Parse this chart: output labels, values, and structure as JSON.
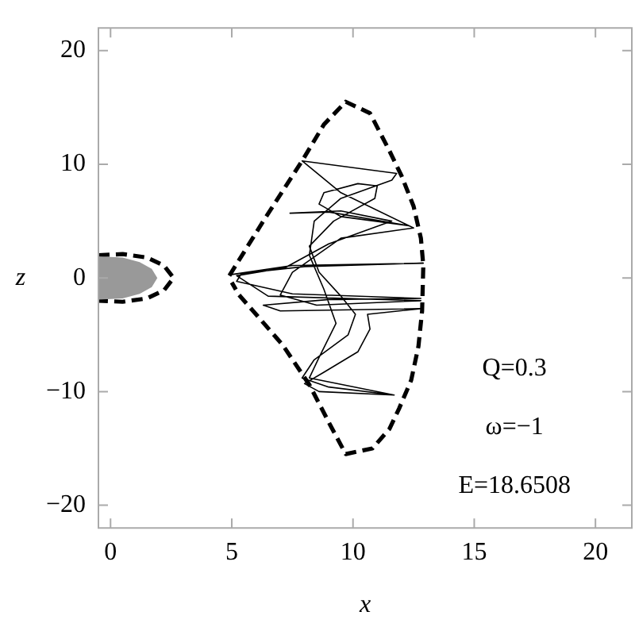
{
  "chart_data": {
    "type": "line",
    "xlabel": "x",
    "ylabel": "z",
    "xlim": [
      -0.5,
      21.5
    ],
    "ylim": [
      -22,
      22
    ],
    "xticks": [
      0,
      5,
      10,
      15,
      20
    ],
    "yticks": [
      {
        "value": -20,
        "label": "−20"
      },
      {
        "value": -10,
        "label": "−10"
      },
      0,
      10,
      20
    ],
    "grid": false,
    "legend": false,
    "annotations": [
      "Q=0.3",
      "ω=−1",
      "E=18.6508"
    ],
    "series": [
      {
        "type": "area",
        "color": "#999999",
        "x": [
          -0.5,
          0.5,
          1.2,
          1.7,
          1.93,
          1.7,
          1.2,
          0.5,
          -0.5
        ],
        "values": [
          1.9,
          1.8,
          1.4,
          0.8,
          0,
          -0.8,
          -1.4,
          -1.8,
          -1.9
        ]
      },
      {
        "type": "line",
        "line_style": "dashed",
        "color": "#000000",
        "x": [
          -0.5,
          0.5,
          1.5,
          2.2,
          2.6,
          2.2,
          1.5,
          0.5,
          -0.5
        ],
        "values": [
          2.0,
          2.1,
          1.8,
          1.1,
          0,
          -1.1,
          -1.8,
          -2.1,
          -2.0
        ]
      },
      {
        "type": "line",
        "line_style": "dashed",
        "color": "#000000",
        "x": [
          4.9,
          6.3,
          7.9,
          8.8,
          9.7,
          10.7,
          11.5,
          12.0,
          12.5,
          12.8,
          12.9,
          12.85,
          12.7,
          12.4,
          11.9,
          11.5,
          10.8,
          9.7,
          9.05,
          8.2,
          7.1,
          6.0,
          5.3,
          5.0
        ],
        "values": [
          0.2,
          5.0,
          10.3,
          13.5,
          15.5,
          14.5,
          11.2,
          9.0,
          6.3,
          3.5,
          1.1,
          -2.9,
          -6.0,
          -9.0,
          -11.5,
          -13.3,
          -15.0,
          -15.5,
          -12.9,
          -9.4,
          -5.9,
          -3.2,
          -1.5,
          -0.4
        ]
      },
      {
        "type": "line",
        "line_style": "solid",
        "color": "#000000",
        "x": [
          5.0,
          7.5,
          12.9,
          8.0,
          5.4,
          5.2,
          7.5,
          12.8,
          9.0,
          6.3,
          7.0,
          12.8,
          10.6,
          10.7,
          10.2,
          8.8,
          8.0,
          8.6,
          11.7,
          9.0,
          7.9,
          8.4,
          9.8,
          10.1,
          9.5,
          8.6,
          8.2,
          9.2,
          10.9,
          11.0,
          10.2,
          8.8,
          8.6,
          9.5,
          12.3,
          9.0,
          7.4,
          9.5,
          11.6,
          9.0,
          7.2,
          5.2,
          6.5,
          12.8,
          8.5,
          7.0,
          7.5,
          9.5,
          12.5,
          9.5,
          7.9,
          11.8,
          11.6,
          9.5,
          8.4,
          8.2,
          8.8,
          9.3,
          8.6,
          8.2,
          11.7
        ],
        "values": [
          0.3,
          1.1,
          1.3,
          1.0,
          0.4,
          -0.3,
          -1.4,
          -1.8,
          -1.9,
          -2.4,
          -2.9,
          -2.7,
          -3.2,
          -4.5,
          -6.5,
          -8.3,
          -9.3,
          -10.0,
          -10.3,
          -9.6,
          -8.8,
          -7.2,
          -5.0,
          -3.2,
          -1.6,
          0.5,
          2.8,
          5.0,
          7.0,
          8.1,
          8.3,
          7.5,
          6.5,
          5.4,
          4.6,
          5.8,
          5.7,
          5.9,
          5.0,
          3.0,
          0.9,
          0.2,
          -1.6,
          -2.0,
          -2.4,
          -1.5,
          0.5,
          3.5,
          4.4,
          7.5,
          10.3,
          9.2,
          8.6,
          7.0,
          5.0,
          2.0,
          -1.0,
          -4.0,
          -7.0,
          -8.8,
          -10.3
        ]
      }
    ]
  }
}
